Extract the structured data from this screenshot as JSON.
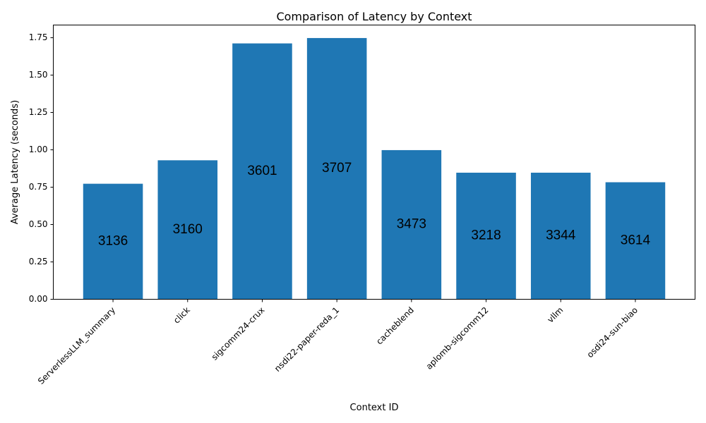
{
  "chart_data": {
    "type": "bar",
    "title": "Comparison of Latency by Context",
    "xlabel": "Context ID",
    "ylabel": "Average Latency (seconds)",
    "categories": [
      "ServerlessLLM_summary",
      "click",
      "sigcomm24-crux",
      "nsdi22-paper-reda_1",
      "cacheblend",
      "aplomb-sigcomm12",
      "vllm",
      "osdi24-sun-biao"
    ],
    "values": [
      0.773,
      0.93,
      1.712,
      1.748,
      0.998,
      0.847,
      0.847,
      0.783
    ],
    "bar_labels": [
      "3136",
      "3160",
      "3601",
      "3707",
      "3473",
      "3218",
      "3344",
      "3614"
    ],
    "ylim": [
      0,
      1.835
    ],
    "yticks": [
      "0.00",
      "0.25",
      "0.50",
      "0.75",
      "1.00",
      "1.25",
      "1.50",
      "1.75"
    ],
    "bar_color": "#1f77b4",
    "grid": false,
    "legend": "none"
  }
}
